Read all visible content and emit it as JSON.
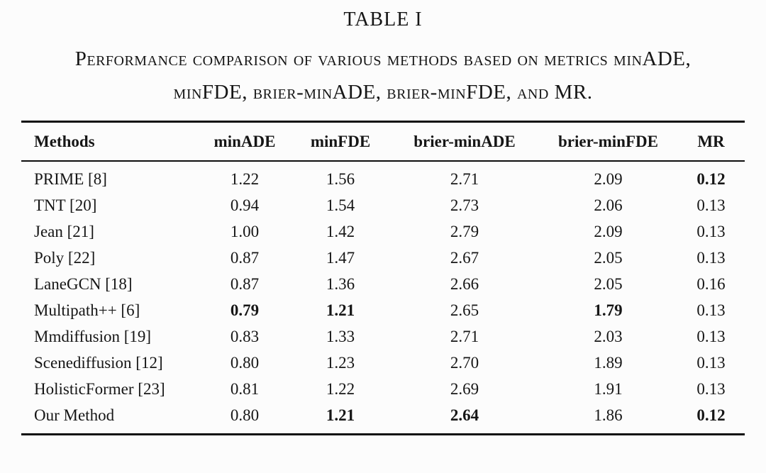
{
  "document": {
    "title": "TABLE I",
    "caption": "Performance comparison of various methods based on metrics minADE, minFDE, brier-minADE, brier-minFDE, and MR."
  },
  "colors": {
    "text": "#161616",
    "rule": "#0d0d0d",
    "background": "#fcfcfc"
  },
  "table": {
    "columns": [
      "Methods",
      "minADE",
      "minFDE",
      "brier-minADE",
      "brier-minFDE",
      "MR"
    ],
    "rows": [
      {
        "cells": [
          "PRIME [8]",
          "1.22",
          "1.56",
          "2.71",
          "2.09",
          "0.12"
        ],
        "bold": [
          false,
          false,
          false,
          false,
          false,
          true
        ]
      },
      {
        "cells": [
          "TNT [20]",
          "0.94",
          "1.54",
          "2.73",
          "2.06",
          "0.13"
        ],
        "bold": [
          false,
          false,
          false,
          false,
          false,
          false
        ]
      },
      {
        "cells": [
          "Jean [21]",
          "1.00",
          "1.42",
          "2.79",
          "2.09",
          "0.13"
        ],
        "bold": [
          false,
          false,
          false,
          false,
          false,
          false
        ]
      },
      {
        "cells": [
          "Poly [22]",
          "0.87",
          "1.47",
          "2.67",
          "2.05",
          "0.13"
        ],
        "bold": [
          false,
          false,
          false,
          false,
          false,
          false
        ]
      },
      {
        "cells": [
          "LaneGCN [18]",
          "0.87",
          "1.36",
          "2.66",
          "2.05",
          "0.16"
        ],
        "bold": [
          false,
          false,
          false,
          false,
          false,
          false
        ]
      },
      {
        "cells": [
          "Multipath++ [6]",
          "0.79",
          "1.21",
          "2.65",
          "1.79",
          "0.13"
        ],
        "bold": [
          false,
          true,
          true,
          false,
          true,
          false
        ]
      },
      {
        "cells": [
          "Mmdiffusion [19]",
          "0.83",
          "1.33",
          "2.71",
          "2.03",
          "0.13"
        ],
        "bold": [
          false,
          false,
          false,
          false,
          false,
          false
        ]
      },
      {
        "cells": [
          "Scenediffusion [12]",
          "0.80",
          "1.23",
          "2.70",
          "1.89",
          "0.13"
        ],
        "bold": [
          false,
          false,
          false,
          false,
          false,
          false
        ]
      },
      {
        "cells": [
          "HolisticFormer [23]",
          "0.81",
          "1.22",
          "2.69",
          "1.91",
          "0.13"
        ],
        "bold": [
          false,
          false,
          false,
          false,
          false,
          false
        ]
      },
      {
        "cells": [
          "Our Method",
          "0.80",
          "1.21",
          "2.64",
          "1.86",
          "0.12"
        ],
        "bold": [
          false,
          false,
          true,
          true,
          false,
          true
        ]
      }
    ]
  }
}
